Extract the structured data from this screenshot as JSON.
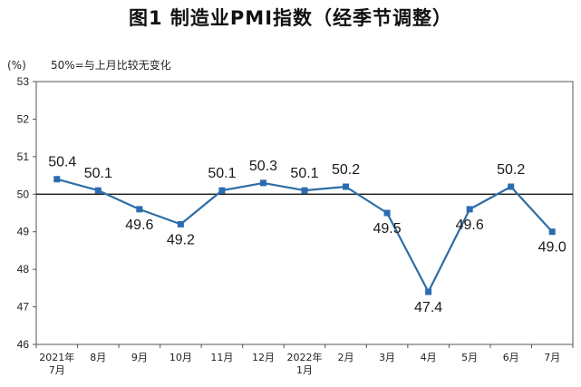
{
  "chart_data": {
    "type": "line",
    "title": "图1 制造业PMI指数（经季节调整）",
    "y_unit_label": "(%)",
    "reference_line_note": "50%=与上月比较无变化",
    "reference_value": 50,
    "ylim": [
      46,
      53
    ],
    "y_ticks": [
      "46",
      "47",
      "48",
      "49",
      "50",
      "51",
      "52",
      "53"
    ],
    "categories": [
      [
        "2021年",
        "7月"
      ],
      [
        "8月"
      ],
      [
        "9月"
      ],
      [
        "10月"
      ],
      [
        "11月"
      ],
      [
        "12月"
      ],
      [
        "2022年",
        "1月"
      ],
      [
        "2月"
      ],
      [
        "3月"
      ],
      [
        "4月"
      ],
      [
        "5月"
      ],
      [
        "6月"
      ],
      [
        "7月"
      ]
    ],
    "series": [
      {
        "values": [
          50.4,
          50.1,
          49.6,
          49.2,
          50.1,
          50.3,
          50.1,
          50.2,
          49.5,
          47.4,
          49.6,
          50.2,
          49.0
        ],
        "labels": [
          "50.4",
          "50.1",
          "49.6",
          "49.2",
          "50.1",
          "50.3",
          "50.1",
          "50.2",
          "49.5",
          "47.4",
          "49.6",
          "50.2",
          "49.0"
        ]
      }
    ],
    "grid": false,
    "colors": {
      "line": "#2e6da4",
      "marker": "#2b6cb0",
      "reference": "#000000",
      "frame": "#555555"
    }
  }
}
